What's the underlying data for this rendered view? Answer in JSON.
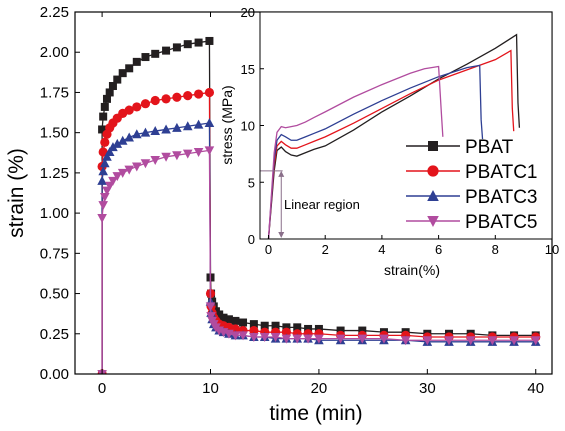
{
  "colors": {
    "PBAT": "#231f20",
    "PBATC1": "#e3141b",
    "PBATC3": "#2e3f93",
    "PBATC5": "#b14c9f"
  },
  "markers": {
    "PBAT": "square",
    "PBATC1": "circle",
    "PBATC3": "triangle-up",
    "PBATC5": "triangle-down"
  },
  "chart_data": [
    {
      "type": "line",
      "xlabel": "time (min)",
      "ylabel": "strain (%)",
      "xlim": [
        -2.5,
        41.5
      ],
      "ylim": [
        0.0,
        2.25
      ],
      "xticks": [
        "0",
        "10",
        "20",
        "30",
        "40"
      ],
      "yticks": [
        "0.00",
        "0.25",
        "0.50",
        "0.75",
        "1.00",
        "1.25",
        "1.50",
        "1.75",
        "2.00",
        "2.25"
      ],
      "series": [
        {
          "name": "PBAT",
          "x": [
            0,
            0,
            0.1,
            0.25,
            0.45,
            0.7,
            1.0,
            1.4,
            1.9,
            2.5,
            3.2,
            4.0,
            4.9,
            5.9,
            6.9,
            7.9,
            8.9,
            9.9,
            10.0,
            10.05,
            10.15,
            10.3,
            10.5,
            10.8,
            11.2,
            11.7,
            12.3,
            13.0,
            14.0,
            15.0,
            16.0,
            17.0,
            18.0,
            19.0,
            20.0,
            22.0,
            24.0,
            26.0,
            28.0,
            30.0,
            32.0,
            34.0,
            36.0,
            38.0,
            40.0
          ],
          "y": [
            0.0,
            1.52,
            1.6,
            1.66,
            1.71,
            1.75,
            1.79,
            1.83,
            1.87,
            1.9,
            1.94,
            1.97,
            1.99,
            2.01,
            2.03,
            2.05,
            2.06,
            2.07,
            0.6,
            0.5,
            0.45,
            0.42,
            0.39,
            0.37,
            0.35,
            0.34,
            0.33,
            0.32,
            0.31,
            0.3,
            0.3,
            0.29,
            0.29,
            0.28,
            0.28,
            0.27,
            0.27,
            0.26,
            0.26,
            0.25,
            0.25,
            0.25,
            0.24,
            0.24,
            0.24
          ]
        },
        {
          "name": "PBATC1",
          "x": [
            0,
            0,
            0.1,
            0.25,
            0.45,
            0.7,
            1.0,
            1.4,
            1.9,
            2.5,
            3.2,
            4.0,
            4.9,
            5.9,
            6.9,
            7.9,
            8.9,
            9.9,
            10.0,
            10.05,
            10.15,
            10.3,
            10.5,
            10.8,
            11.2,
            11.7,
            12.3,
            13.0,
            14.0,
            15.0,
            16.0,
            17.0,
            18.0,
            19.0,
            20.0,
            22.0,
            24.0,
            26.0,
            28.0,
            30.0,
            32.0,
            34.0,
            36.0,
            38.0,
            40.0
          ],
          "y": [
            0.0,
            1.29,
            1.38,
            1.44,
            1.49,
            1.53,
            1.56,
            1.59,
            1.62,
            1.64,
            1.66,
            1.68,
            1.7,
            1.71,
            1.72,
            1.73,
            1.74,
            1.75,
            0.5,
            0.42,
            0.38,
            0.35,
            0.33,
            0.31,
            0.3,
            0.29,
            0.28,
            0.27,
            0.27,
            0.26,
            0.26,
            0.26,
            0.25,
            0.25,
            0.25,
            0.24,
            0.24,
            0.24,
            0.24,
            0.23,
            0.23,
            0.23,
            0.23,
            0.23,
            0.23
          ]
        },
        {
          "name": "PBATC3",
          "x": [
            0,
            0,
            0.1,
            0.25,
            0.45,
            0.7,
            1.0,
            1.4,
            1.9,
            2.5,
            3.2,
            4.0,
            4.9,
            5.9,
            6.9,
            7.9,
            8.9,
            9.9,
            10.0,
            10.05,
            10.15,
            10.3,
            10.5,
            10.8,
            11.2,
            11.7,
            12.3,
            13.0,
            14.0,
            15.0,
            16.0,
            17.0,
            18.0,
            19.0,
            20.0,
            22.0,
            24.0,
            26.0,
            28.0,
            30.0,
            32.0,
            34.0,
            36.0,
            38.0,
            40.0
          ],
          "y": [
            0.0,
            1.2,
            1.26,
            1.31,
            1.35,
            1.38,
            1.41,
            1.43,
            1.45,
            1.47,
            1.49,
            1.5,
            1.51,
            1.52,
            1.53,
            1.54,
            1.55,
            1.56,
            0.45,
            0.38,
            0.34,
            0.31,
            0.29,
            0.27,
            0.26,
            0.25,
            0.24,
            0.24,
            0.23,
            0.23,
            0.22,
            0.22,
            0.22,
            0.22,
            0.21,
            0.21,
            0.21,
            0.21,
            0.21,
            0.2,
            0.2,
            0.2,
            0.2,
            0.2,
            0.2
          ]
        },
        {
          "name": "PBATC5",
          "x": [
            0,
            0,
            0.1,
            0.25,
            0.45,
            0.7,
            1.0,
            1.4,
            1.9,
            2.5,
            3.2,
            4.0,
            4.9,
            5.9,
            6.9,
            7.9,
            8.9,
            9.9,
            10.0,
            10.05,
            10.15,
            10.3,
            10.5,
            10.8,
            11.2,
            11.7,
            12.3,
            13.0,
            14.0,
            15.0,
            16.0,
            17.0,
            18.0,
            19.0,
            20.0,
            22.0,
            24.0,
            26.0,
            28.0,
            30.0,
            32.0,
            34.0,
            36.0,
            38.0,
            40.0
          ],
          "y": [
            0.0,
            0.97,
            1.05,
            1.1,
            1.14,
            1.17,
            1.2,
            1.23,
            1.25,
            1.27,
            1.29,
            1.31,
            1.33,
            1.35,
            1.36,
            1.37,
            1.38,
            1.39,
            0.42,
            0.36,
            0.33,
            0.31,
            0.29,
            0.27,
            0.26,
            0.25,
            0.24,
            0.24,
            0.23,
            0.23,
            0.23,
            0.22,
            0.22,
            0.22,
            0.22,
            0.22,
            0.22,
            0.22,
            0.21,
            0.21,
            0.21,
            0.21,
            0.21,
            0.21,
            0.21
          ]
        }
      ],
      "legend": "right of inset, over main plot"
    },
    {
      "type": "line",
      "xlabel": "strain(%)",
      "ylabel": "stress (MPa)",
      "xlim": [
        -0.3,
        10
      ],
      "ylim": [
        0,
        20
      ],
      "xticks": [
        "0",
        "2",
        "4",
        "6",
        "8",
        "10"
      ],
      "yticks": [
        "0",
        "5",
        "10",
        "15",
        "20"
      ],
      "annotation": "Linear region",
      "linear_region": {
        "x": [
          -0.3,
          0.5
        ],
        "y": 6.0
      },
      "series": [
        {
          "name": "PBAT",
          "x": [
            0,
            0.1,
            0.2,
            0.3,
            0.45,
            0.6,
            0.8,
            1.0,
            1.3,
            1.6,
            2.0,
            3.0,
            4.0,
            5.0,
            6.0,
            7.0,
            8.0,
            8.75,
            8.8,
            8.85
          ],
          "y": [
            0,
            3.0,
            6.0,
            7.8,
            8.1,
            7.7,
            7.4,
            7.3,
            7.6,
            7.9,
            8.2,
            9.6,
            11.2,
            12.6,
            14.1,
            15.4,
            16.8,
            18.0,
            12.0,
            9.8
          ]
        },
        {
          "name": "PBATC1",
          "x": [
            0,
            0.1,
            0.2,
            0.3,
            0.45,
            0.6,
            0.8,
            1.0,
            1.3,
            1.6,
            2.0,
            3.0,
            4.0,
            5.0,
            6.0,
            7.0,
            8.0,
            8.55,
            8.6,
            8.65
          ],
          "y": [
            0,
            3.3,
            6.5,
            8.2,
            8.6,
            8.3,
            8.0,
            8.0,
            8.3,
            8.6,
            9.0,
            10.2,
            11.5,
            12.8,
            14.0,
            14.9,
            15.8,
            16.6,
            11.5,
            9.5
          ]
        },
        {
          "name": "PBATC3",
          "x": [
            0,
            0.1,
            0.2,
            0.3,
            0.45,
            0.6,
            0.8,
            1.0,
            1.3,
            1.6,
            2.0,
            3.0,
            4.0,
            5.0,
            6.0,
            7.0,
            7.45,
            7.5,
            7.55
          ],
          "y": [
            0,
            3.5,
            7.0,
            8.7,
            9.2,
            9.0,
            8.7,
            8.7,
            9.0,
            9.3,
            9.7,
            11.0,
            12.2,
            13.3,
            14.3,
            15.1,
            15.3,
            10.5,
            8.8
          ]
        },
        {
          "name": "PBATC5",
          "x": [
            0,
            0.1,
            0.2,
            0.3,
            0.45,
            0.6,
            0.8,
            1.0,
            1.3,
            1.6,
            2.0,
            3.0,
            4.0,
            5.0,
            5.5,
            6.0,
            6.1,
            6.15
          ],
          "y": [
            0,
            3.8,
            7.6,
            9.4,
            9.9,
            9.8,
            9.9,
            10.0,
            10.3,
            10.7,
            11.2,
            12.5,
            13.6,
            14.6,
            15.0,
            15.2,
            11.0,
            9.0
          ]
        }
      ]
    }
  ]
}
